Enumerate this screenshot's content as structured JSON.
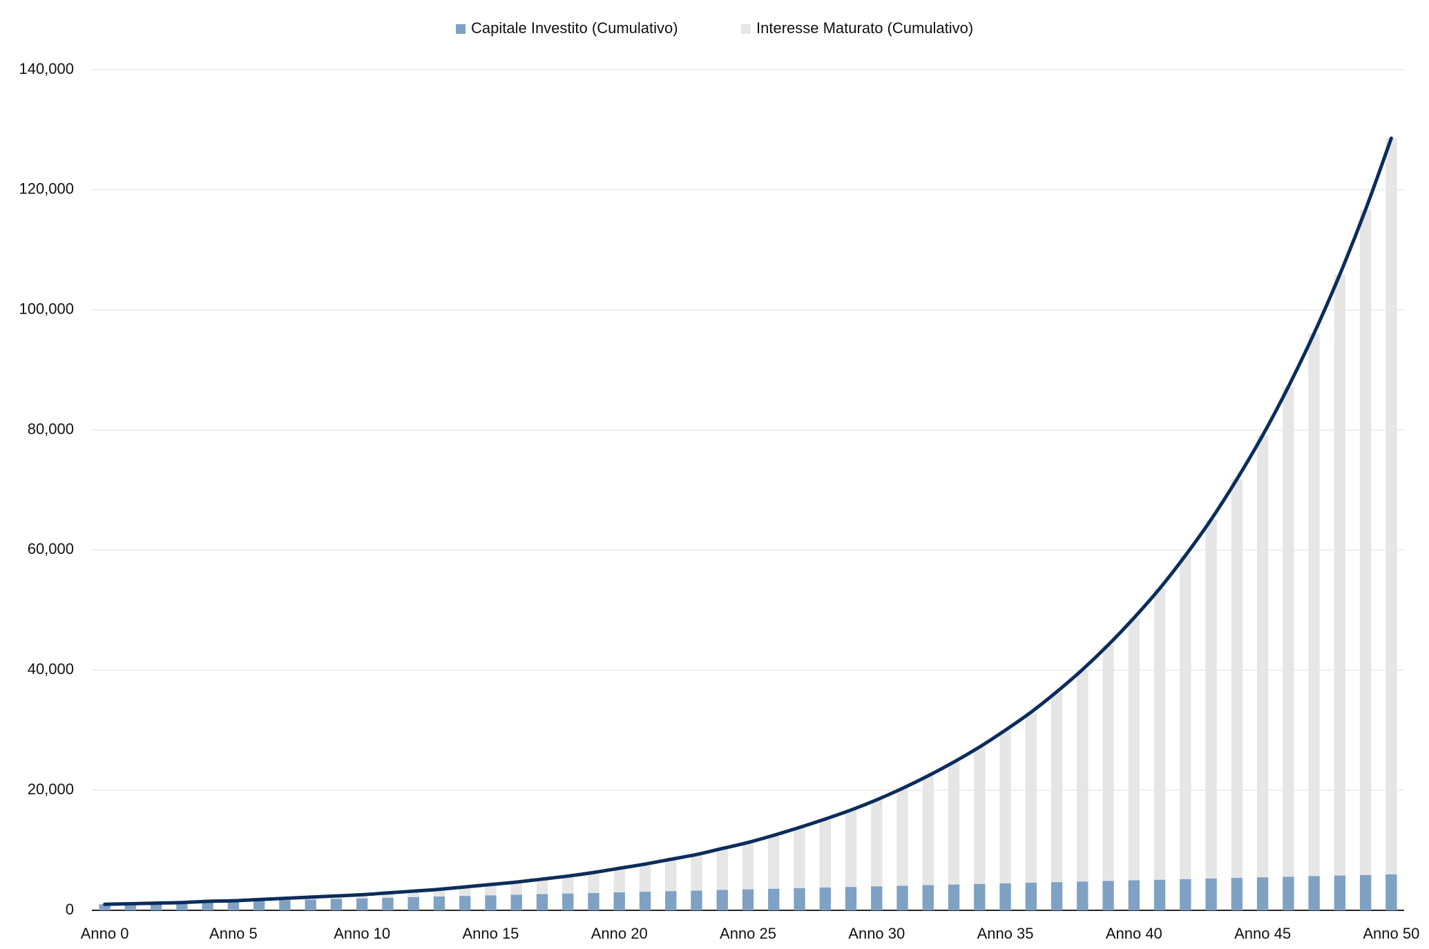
{
  "chart_data": {
    "type": "stacked-bar-line",
    "categories": [
      "Anno 0",
      null,
      null,
      null,
      null,
      "Anno 5",
      null,
      null,
      null,
      null,
      "Anno 10",
      null,
      null,
      null,
      null,
      "Anno 15",
      null,
      null,
      null,
      null,
      "Anno 20",
      null,
      null,
      null,
      null,
      "Anno 25",
      null,
      null,
      null,
      null,
      "Anno 30",
      null,
      null,
      null,
      null,
      "Anno 35",
      null,
      null,
      null,
      null,
      "Anno 40",
      null,
      null,
      null,
      null,
      "Anno 45",
      null,
      null,
      null,
      null,
      "Anno 50"
    ],
    "series": [
      {
        "name": "Capitale Investito (Cumulativo)",
        "color": "#7fa1c3",
        "type": "bar",
        "values": [
          1000,
          1100,
          1200,
          1300,
          1400,
          1500,
          1600,
          1700,
          1800,
          1900,
          2000,
          2100,
          2200,
          2300,
          2400,
          2500,
          2600,
          2700,
          2800,
          2900,
          3000,
          3100,
          3200,
          3300,
          3400,
          3500,
          3600,
          3700,
          3800,
          3900,
          4000,
          4100,
          4200,
          4300,
          4400,
          4500,
          4600,
          4700,
          4800,
          4900,
          5000,
          5100,
          5200,
          5300,
          5400,
          5500,
          5600,
          5700,
          5800,
          5900,
          6000
        ]
      },
      {
        "name": "Interesse Maturato (Cumulativo)",
        "color": "#e6e6e6",
        "type": "bar",
        "values": [
          0,
          0,
          0,
          0,
          100,
          100,
          200,
          300,
          400,
          500,
          600,
          800,
          1000,
          1200,
          1500,
          1800,
          2100,
          2500,
          2900,
          3400,
          4000,
          4600,
          5300,
          6000,
          6900,
          7800,
          8900,
          10100,
          11400,
          12800,
          14400,
          16200,
          18200,
          20400,
          22800,
          25500,
          28400,
          31700,
          35300,
          39300,
          43700,
          48500,
          53900,
          59800,
          66400,
          73600,
          81600,
          90400,
          100100,
          110800,
          122600
        ]
      },
      {
        "color": "#0b2d5b",
        "type": "line",
        "values": [
          1000,
          1100,
          1200,
          1300,
          1500,
          1600,
          1800,
          2000,
          2200,
          2400,
          2600,
          2900,
          3200,
          3500,
          3900,
          4300,
          4700,
          5200,
          5700,
          6300,
          7000,
          7700,
          8500,
          9300,
          10300,
          11300,
          12500,
          13800,
          15200,
          16700,
          18400,
          20300,
          22400,
          24700,
          27200,
          30000,
          33000,
          36400,
          40100,
          44200,
          48700,
          53600,
          59100,
          65100,
          71800,
          79100,
          87200,
          96100,
          105900,
          116700,
          128600
        ]
      }
    ],
    "ylim": [
      0,
      140000
    ],
    "yticks": [
      0,
      {
        "value": 20000,
        "label": "20,000"
      },
      {
        "value": 40000,
        "label": "40,000"
      },
      {
        "value": 60000,
        "label": "60,000"
      },
      {
        "value": 80000,
        "label": "80,000"
      },
      {
        "value": 100000,
        "label": "100,000"
      },
      {
        "value": 120000,
        "label": "120,000"
      },
      {
        "value": 140000,
        "label": "140,000"
      }
    ],
    "grid": true,
    "legend": "top"
  }
}
